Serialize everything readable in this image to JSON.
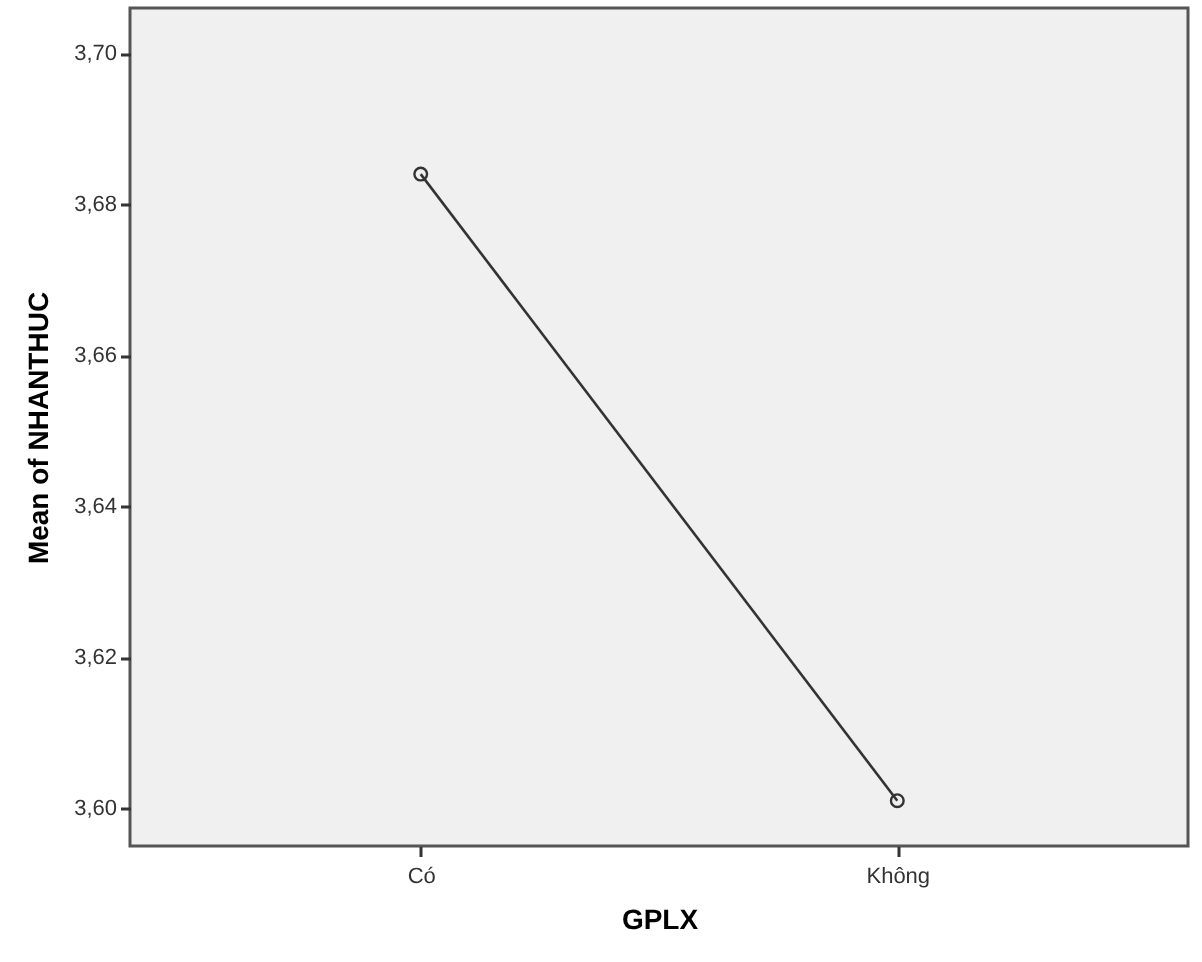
{
  "chart_data": {
    "type": "line",
    "xlabel": "GPLX",
    "ylabel": "Mean of NHANTHUC",
    "categories": [
      "Có",
      "Không"
    ],
    "series": [
      {
        "color": "#333333",
        "values": [
          3.684,
          3.601
        ]
      }
    ],
    "ylim": [
      3.595,
      3.706
    ],
    "yticks": [
      {
        "value": 3.6,
        "label": "3,60"
      },
      {
        "value": 3.62,
        "label": "3,62"
      },
      {
        "value": 3.64,
        "label": "3,64"
      },
      {
        "value": 3.66,
        "label": "3,66"
      },
      {
        "value": 3.68,
        "label": "3,68"
      },
      {
        "value": 3.7,
        "label": "3,70"
      }
    ],
    "marker": "circle",
    "grid": false
  }
}
